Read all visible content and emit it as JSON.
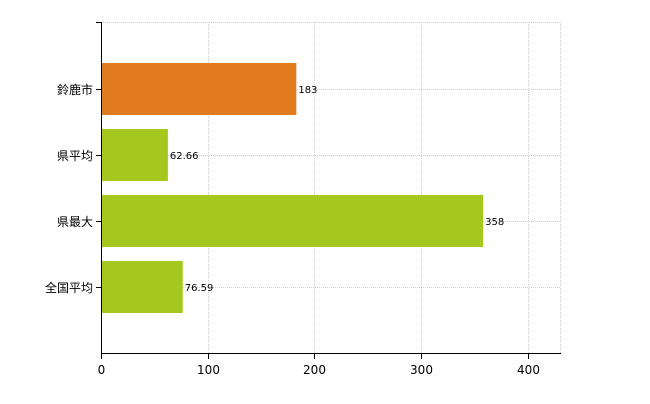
{
  "chart_data": {
    "type": "bar",
    "orientation": "horizontal",
    "categories": [
      "鈴鹿市",
      "県平均",
      "県最大",
      "全国平均"
    ],
    "values": [
      183,
      62.66,
      358,
      76.59
    ],
    "value_labels": [
      "183",
      "62.66",
      "358",
      "76.59"
    ],
    "bar_colors": [
      "#e07b20",
      "#a5c81e",
      "#a5c81e",
      "#a5c81e"
    ],
    "xlim": [
      0,
      430
    ],
    "xticks": [
      0,
      100,
      200,
      300,
      400
    ],
    "xtick_labels": [
      "0",
      "100",
      "200",
      "300",
      "400"
    ],
    "grid": true,
    "grid_color": "#d0d0d0",
    "axis_color": "#000000",
    "title": "",
    "xlabel": "",
    "ylabel": ""
  }
}
